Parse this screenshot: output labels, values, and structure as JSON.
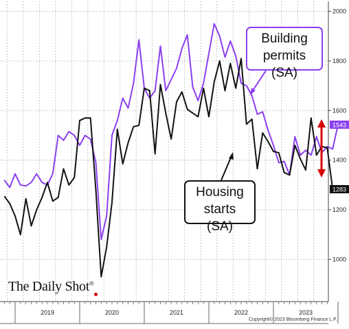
{
  "chart_data": {
    "type": "line",
    "x_labels": [
      "2019",
      "2020",
      "2021",
      "2022",
      "2023"
    ],
    "y_ticks": [
      1000,
      1200,
      1400,
      1600,
      1800,
      2000
    ],
    "ylim": [
      830,
      2040
    ],
    "grid": true,
    "series": [
      {
        "name": "Building permits (SA)",
        "color": "#8a3ff0",
        "last_value_label": "1543",
        "values": [
          1320,
          1290,
          1345,
          1300,
          1296,
          1310,
          1345,
          1310,
          1300,
          1345,
          1500,
          1480,
          1515,
          1500,
          1460,
          1500,
          1485,
          1390,
          1080,
          1175,
          1500,
          1560,
          1650,
          1610,
          1710,
          1885,
          1690,
          1650,
          1680,
          1860,
          1680,
          1725,
          1770,
          1850,
          1905,
          1695,
          1640,
          1710,
          1830,
          1950,
          1900,
          1815,
          1880,
          1820,
          1710,
          1700,
          1660,
          1585,
          1595,
          1520,
          1460,
          1390,
          1395,
          1340,
          1495,
          1420,
          1440,
          1420,
          1495,
          1430,
          1455,
          1445,
          1543
        ]
      },
      {
        "name": "Housing starts (SA)",
        "color": "#111111",
        "last_value_label": "1283",
        "values": [
          1255,
          1225,
          1175,
          1100,
          1245,
          1135,
          1200,
          1250,
          1310,
          1235,
          1250,
          1365,
          1300,
          1330,
          1560,
          1570,
          1570,
          1280,
          930,
          1050,
          1230,
          1525,
          1385,
          1470,
          1535,
          1540,
          1690,
          1680,
          1425,
          1705,
          1590,
          1485,
          1635,
          1675,
          1605,
          1590,
          1575,
          1690,
          1575,
          1715,
          1800,
          1680,
          1790,
          1690,
          1810,
          1545,
          1565,
          1365,
          1510,
          1475,
          1435,
          1430,
          1350,
          1340,
          1460,
          1405,
          1360,
          1570,
          1420,
          1455,
          1450,
          1283
        ]
      }
    ],
    "annotations": {
      "permits_callout": "Building permits (SA)",
      "starts_callout": "Housing starts (SA)"
    }
  },
  "watermark": {
    "name": "The Daily Shot",
    "mark": "®"
  },
  "copyright": "Copyright© 2023 Bloomberg Finance L.P."
}
